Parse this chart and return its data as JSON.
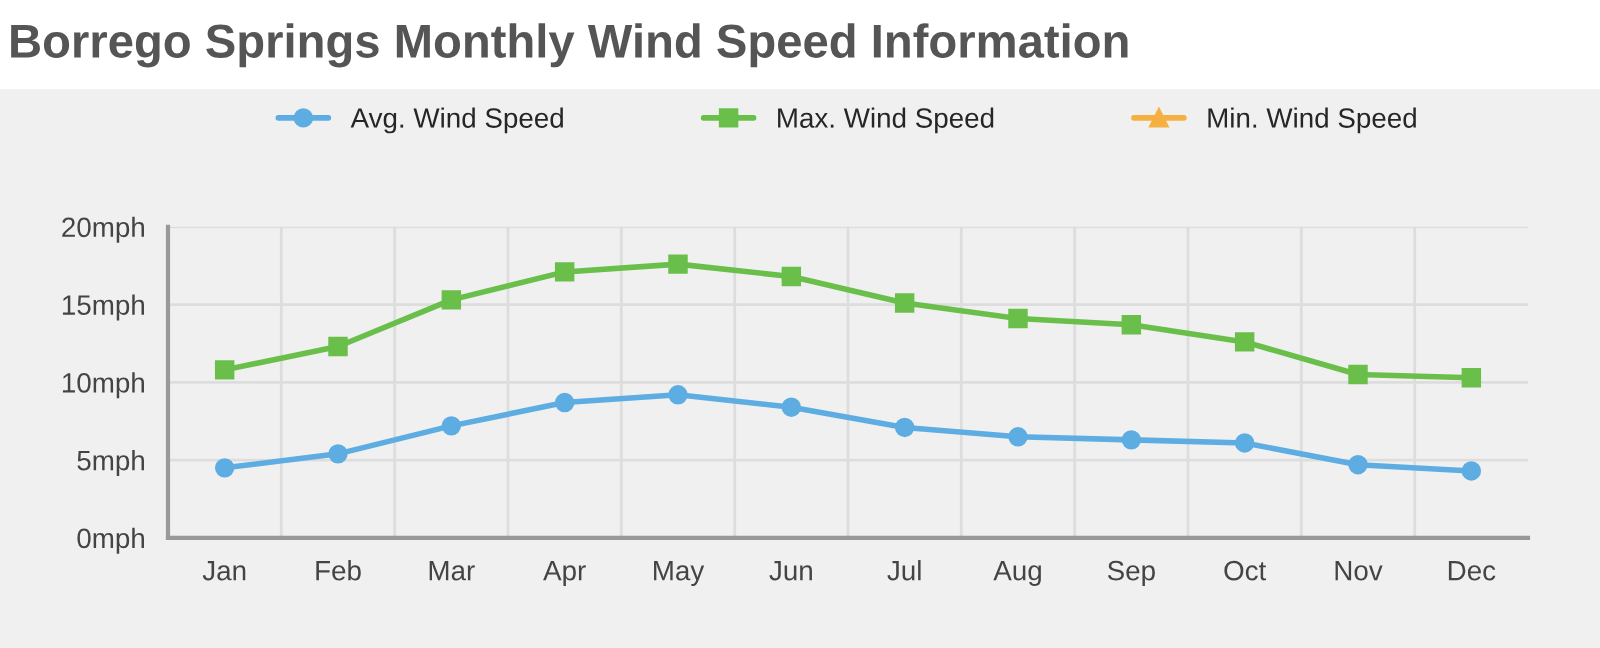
{
  "chart_data": {
    "type": "line",
    "title": "Borrego Springs Monthly Wind Speed Information",
    "categories": [
      "Jan",
      "Feb",
      "Mar",
      "Apr",
      "May",
      "Jun",
      "Jul",
      "Aug",
      "Sep",
      "Oct",
      "Nov",
      "Dec"
    ],
    "series": [
      {
        "name": "Avg. Wind Speed",
        "color": "#5dade2",
        "marker": "circle",
        "values": [
          4.5,
          5.4,
          7.2,
          8.7,
          9.2,
          8.4,
          7.1,
          6.5,
          6.3,
          6.1,
          4.7,
          4.3
        ]
      },
      {
        "name": "Max. Wind Speed",
        "color": "#6abf4b",
        "marker": "square",
        "values": [
          10.8,
          12.3,
          15.3,
          17.1,
          17.6,
          16.8,
          15.1,
          14.1,
          13.7,
          12.6,
          10.5,
          10.3
        ]
      },
      {
        "name": "Min. Wind Speed",
        "color": "#f5b041",
        "marker": "triangle",
        "values": [
          null,
          null,
          null,
          null,
          null,
          null,
          null,
          null,
          null,
          null,
          null,
          null
        ]
      }
    ],
    "ylim": [
      0,
      20
    ],
    "yticks": [
      {
        "value": 0,
        "label": "0mph"
      },
      {
        "value": 5,
        "label": "5mph"
      },
      {
        "value": 10,
        "label": "10mph"
      },
      {
        "value": 15,
        "label": "15mph"
      },
      {
        "value": 20,
        "label": "20mph"
      }
    ],
    "grid": true,
    "legend": "top",
    "line_style": "solid"
  }
}
